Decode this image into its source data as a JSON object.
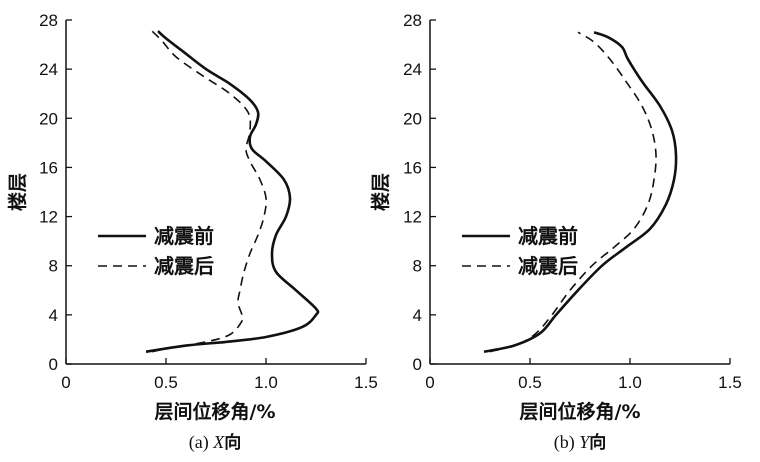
{
  "chart_data": [
    {
      "type": "line",
      "panel": "a",
      "caption_prefix": "(a) ",
      "caption_var": "X",
      "caption_suffix": "向",
      "xlabel": "层间位移角/%",
      "ylabel": "楼层",
      "xlim": [
        0,
        1.5
      ],
      "ylim": [
        0,
        28
      ],
      "xticks": [
        0,
        0.5,
        1.0,
        1.5
      ],
      "xtick_labels": [
        "0",
        "0.5",
        "1.0",
        "1.5"
      ],
      "yticks": [
        0,
        4,
        8,
        12,
        16,
        20,
        24,
        28
      ],
      "ytick_labels": [
        "0",
        "4",
        "8",
        "12",
        "16",
        "20",
        "24",
        "28"
      ],
      "legend_position": "left-middle",
      "series": [
        {
          "name": "减震前",
          "style": "solid",
          "x": [
            0.4,
            0.6,
            0.8,
            1.0,
            1.18,
            1.25,
            1.25,
            1.15,
            1.05,
            1.03,
            1.05,
            1.1,
            1.12,
            1.09,
            1.0,
            0.93,
            0.92,
            0.95,
            0.96,
            0.92,
            0.82,
            0.7,
            0.58,
            0.5,
            0.46
          ],
          "y": [
            1,
            1.5,
            1.8,
            2.2,
            3.0,
            4.0,
            4.5,
            6.0,
            7.5,
            9.0,
            10.5,
            12.0,
            13.5,
            15.0,
            16.5,
            17.5,
            18.5,
            19.5,
            20.5,
            21.5,
            22.8,
            24.0,
            25.5,
            26.5,
            27.1
          ]
        },
        {
          "name": "减震后",
          "style": "dashed",
          "x": [
            0.43,
            0.55,
            0.7,
            0.82,
            0.88,
            0.88,
            0.86,
            0.87,
            0.89,
            0.92,
            0.96,
            0.99,
            1.0,
            0.97,
            0.92,
            0.9,
            0.92,
            0.91,
            0.82,
            0.68,
            0.55,
            0.48,
            0.43
          ],
          "y": [
            1,
            1.4,
            1.8,
            2.4,
            3.5,
            4.0,
            5.0,
            6.0,
            7.5,
            9.0,
            10.5,
            12.0,
            13.5,
            15.0,
            16.5,
            17.5,
            19.0,
            20.5,
            22.0,
            23.5,
            25.0,
            26.3,
            27.1
          ]
        }
      ]
    },
    {
      "type": "line",
      "panel": "b",
      "caption_prefix": "(b) ",
      "caption_var": "Y",
      "caption_suffix": "向",
      "xlabel": "层间位移角/%",
      "ylabel": "楼层",
      "xlim": [
        0,
        1.5
      ],
      "ylim": [
        0,
        28
      ],
      "xticks": [
        0,
        0.5,
        1.0,
        1.5
      ],
      "xtick_labels": [
        "0",
        "0.5",
        "1.0",
        "1.5"
      ],
      "yticks": [
        0,
        4,
        8,
        12,
        16,
        20,
        24,
        28
      ],
      "ytick_labels": [
        "0",
        "4",
        "8",
        "12",
        "16",
        "20",
        "24",
        "28"
      ],
      "legend_position": "left-middle",
      "series": [
        {
          "name": "减震前",
          "style": "solid",
          "x": [
            0.27,
            0.42,
            0.55,
            0.63,
            0.74,
            0.86,
            0.98,
            1.1,
            1.18,
            1.22,
            1.23,
            1.21,
            1.15,
            1.06,
            0.99,
            0.96,
            0.89,
            0.82
          ],
          "y": [
            1,
            1.5,
            2.5,
            4.0,
            6.0,
            8.0,
            9.5,
            11.0,
            13.0,
            15.0,
            17.0,
            19.0,
            21.0,
            23.0,
            24.8,
            25.8,
            26.6,
            27.0
          ]
        },
        {
          "name": "减震后",
          "style": "dashed",
          "x": [
            0.3,
            0.44,
            0.53,
            0.61,
            0.7,
            0.81,
            0.92,
            1.02,
            1.09,
            1.12,
            1.13,
            1.11,
            1.06,
            0.98,
            0.9,
            0.82,
            0.74
          ],
          "y": [
            1,
            1.6,
            2.5,
            4.0,
            6.0,
            8.0,
            9.5,
            11.0,
            13.0,
            15.0,
            17.0,
            19.0,
            21.0,
            23.0,
            24.8,
            26.2,
            27.0
          ]
        }
      ]
    }
  ]
}
